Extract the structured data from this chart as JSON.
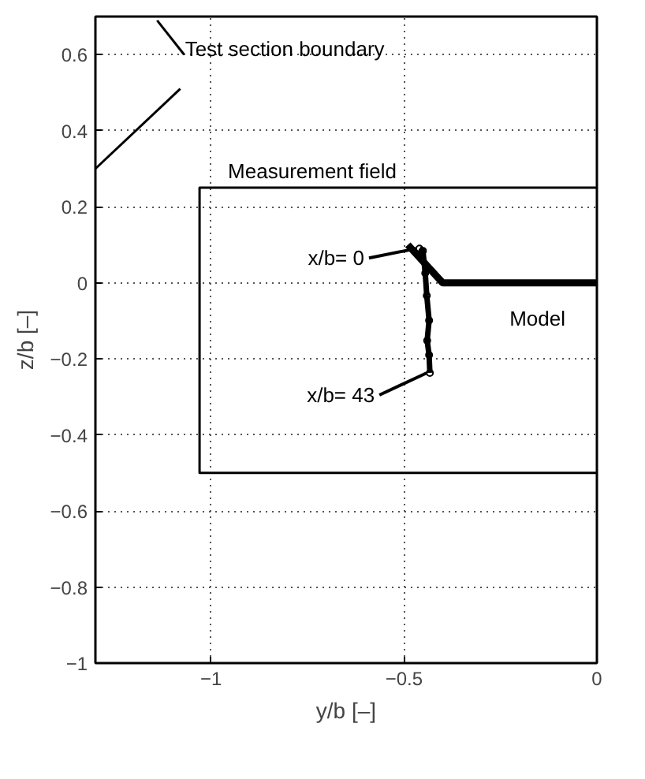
{
  "chart_data": {
    "type": "line",
    "xlabel": "y/b [–]",
    "ylabel": "z/b [–]",
    "xlim": [
      -1.3,
      0
    ],
    "ylim": [
      -1,
      0.7
    ],
    "xticks": [
      {
        "value": -1,
        "label": "−1"
      },
      {
        "value": -0.5,
        "label": "−0.5"
      },
      0
    ],
    "yticks": [
      {
        "value": -1,
        "label": "−1"
      },
      {
        "value": -0.8,
        "label": "−0.8"
      },
      {
        "value": -0.6,
        "label": "−0.6"
      },
      {
        "value": -0.4,
        "label": "−0.4"
      },
      {
        "value": -0.2,
        "label": "−0.2"
      },
      0,
      0.2,
      0.4,
      0.6
    ],
    "grid": true,
    "line_style": "solid",
    "series": [
      {
        "name": "Test section boundary",
        "color": "#000000",
        "x": [
          -1.3,
          -1.08
        ],
        "values": [
          0.3,
          0.51
        ]
      },
      {
        "color": "#000000",
        "x": [
          -1.14,
          -1.07
        ],
        "values": [
          0.69,
          0.6
        ]
      },
      {
        "name": "Measurement field",
        "color": "#000000",
        "x": [
          0,
          -1.03,
          -1.03,
          0
        ],
        "values": [
          -0.5,
          -0.5,
          0.25,
          0.25
        ]
      },
      {
        "name": "Model",
        "color": "#000000",
        "x": [
          -0.49,
          -0.4,
          0
        ],
        "values": [
          0.1,
          0,
          0
        ]
      },
      {
        "color": "#000000",
        "marker": "circle",
        "x": [
          -0.46,
          -0.451,
          -0.445,
          -0.441,
          -0.435,
          -0.44,
          -0.435,
          -0.433
        ],
        "values": [
          0.09,
          0.084,
          0.025,
          -0.034,
          -0.099,
          -0.152,
          -0.19,
          -0.237
        ]
      }
    ],
    "annotations": [
      {
        "text": "x/b= 0",
        "x": -0.46,
        "y": 0.09
      },
      {
        "text": "x/b= 43",
        "x": -0.433,
        "y": -0.237
      }
    ]
  }
}
